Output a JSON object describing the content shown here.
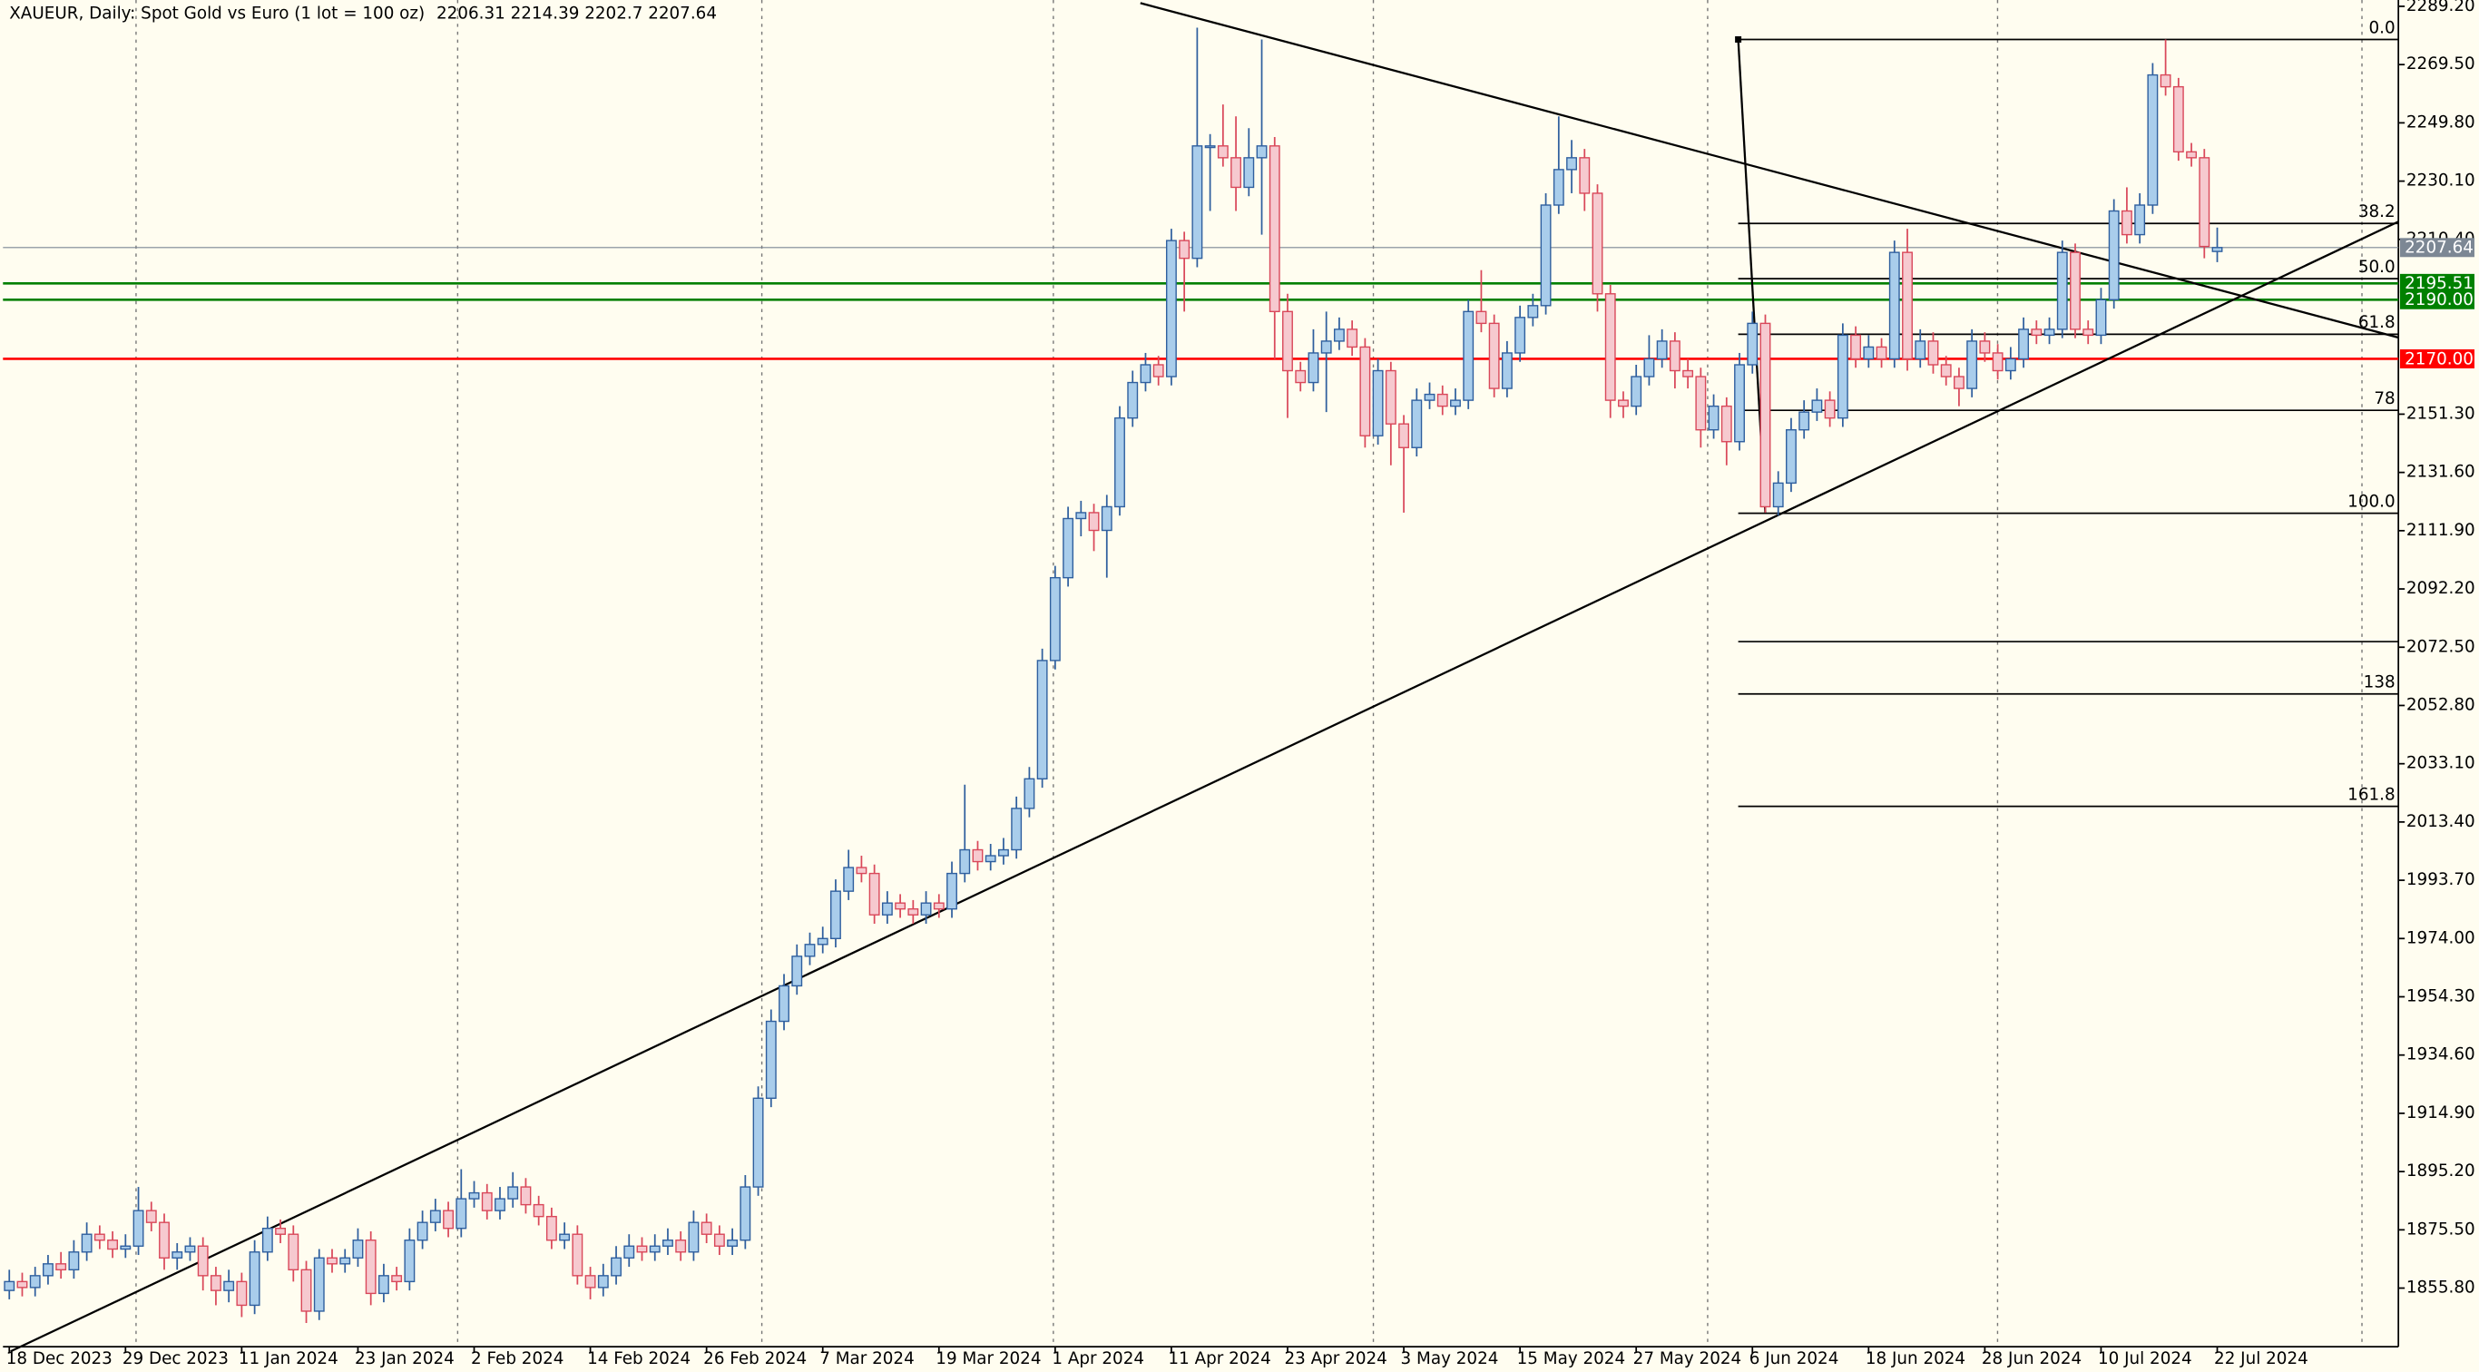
{
  "chart_data": {
    "type": "candlestick",
    "title": "XAUEUR, Daily:  Spot Gold vs Euro (1 lot = 100 oz)",
    "categories": [
      "18 Dec 2023",
      null,
      null,
      null,
      null,
      null,
      null,
      null,
      null,
      "29 Dec 2023",
      null,
      null,
      null,
      null,
      null,
      null,
      null,
      null,
      "11 Jan 2024",
      null,
      null,
      null,
      null,
      null,
      null,
      null,
      null,
      "23 Jan 2024",
      null,
      null,
      null,
      null,
      null,
      null,
      null,
      null,
      "2 Feb 2024",
      null,
      null,
      null,
      null,
      null,
      null,
      null,
      null,
      "14 Feb 2024",
      null,
      null,
      null,
      null,
      null,
      null,
      null,
      null,
      "26 Feb 2024",
      null,
      null,
      null,
      null,
      null,
      null,
      null,
      null,
      "7 Mar 2024",
      null,
      null,
      null,
      null,
      null,
      null,
      null,
      null,
      "19 Mar 2024",
      null,
      null,
      null,
      null,
      null,
      null,
      null,
      null,
      "1 Apr 2024",
      null,
      null,
      null,
      null,
      null,
      null,
      null,
      null,
      "11 Apr 2024",
      null,
      null,
      null,
      null,
      null,
      null,
      null,
      null,
      "23 Apr 2024",
      null,
      null,
      null,
      null,
      null,
      null,
      null,
      null,
      "3 May 2024",
      null,
      null,
      null,
      null,
      null,
      null,
      null,
      null,
      "15 May 2024",
      null,
      null,
      null,
      null,
      null,
      null,
      null,
      null,
      "27 May 2024",
      null,
      null,
      null,
      null,
      null,
      null,
      null,
      null,
      "6 Jun 2024",
      null,
      null,
      null,
      null,
      null,
      null,
      null,
      null,
      "18 Jun 2024",
      null,
      null,
      null,
      null,
      null,
      null,
      null,
      null,
      "28 Jun 2024",
      null,
      null,
      null,
      null,
      null,
      null,
      null,
      null,
      "10 Jul 2024",
      null,
      null,
      null,
      null,
      null,
      null,
      null,
      null,
      "22 Jul 2024"
    ],
    "candles": [
      [
        1855,
        1862,
        1852,
        1858
      ],
      [
        1858,
        1861,
        1853,
        1856
      ],
      [
        1856,
        1863,
        1853,
        1860
      ],
      [
        1860,
        1867,
        1857,
        1864
      ],
      [
        1864,
        1868,
        1859,
        1862
      ],
      [
        1862,
        1872,
        1859,
        1868
      ],
      [
        1868,
        1878,
        1865,
        1874
      ],
      [
        1874,
        1877,
        1869,
        1872
      ],
      [
        1872,
        1875,
        1866,
        1869
      ],
      [
        1869,
        1874,
        1866,
        1870
      ],
      [
        1870,
        1890,
        1867,
        1882
      ],
      [
        1882,
        1885,
        1875,
        1878
      ],
      [
        1878,
        1881,
        1862,
        1866
      ],
      [
        1866,
        1871,
        1862,
        1868
      ],
      [
        1868,
        1873,
        1865,
        1870
      ],
      [
        1870,
        1873,
        1855,
        1860
      ],
      [
        1860,
        1863,
        1850,
        1855
      ],
      [
        1855,
        1862,
        1851,
        1858
      ],
      [
        1858,
        1861,
        1846,
        1850
      ],
      [
        1850,
        1872,
        1847,
        1868
      ],
      [
        1868,
        1880,
        1865,
        1876
      ],
      [
        1876,
        1879,
        1871,
        1874
      ],
      [
        1874,
        1877,
        1858,
        1862
      ],
      [
        1862,
        1865,
        1844,
        1848
      ],
      [
        1848,
        1869,
        1845,
        1866
      ],
      [
        1866,
        1869,
        1861,
        1864
      ],
      [
        1864,
        1869,
        1861,
        1866
      ],
      [
        1866,
        1876,
        1863,
        1872
      ],
      [
        1872,
        1875,
        1850,
        1854
      ],
      [
        1854,
        1864,
        1851,
        1860
      ],
      [
        1860,
        1863,
        1855,
        1858
      ],
      [
        1858,
        1876,
        1855,
        1872
      ],
      [
        1872,
        1882,
        1869,
        1878
      ],
      [
        1878,
        1886,
        1875,
        1882
      ],
      [
        1882,
        1885,
        1873,
        1876
      ],
      [
        1876,
        1896,
        1873,
        1886
      ],
      [
        1886,
        1892,
        1883,
        1888
      ],
      [
        1888,
        1891,
        1879,
        1882
      ],
      [
        1882,
        1890,
        1879,
        1886
      ],
      [
        1886,
        1895,
        1883,
        1890
      ],
      [
        1890,
        1893,
        1881,
        1884
      ],
      [
        1884,
        1887,
        1877,
        1880
      ],
      [
        1880,
        1883,
        1869,
        1872
      ],
      [
        1872,
        1878,
        1869,
        1874
      ],
      [
        1874,
        1877,
        1857,
        1860
      ],
      [
        1860,
        1863,
        1852,
        1856
      ],
      [
        1856,
        1864,
        1853,
        1860
      ],
      [
        1860,
        1870,
        1857,
        1866
      ],
      [
        1866,
        1874,
        1863,
        1870
      ],
      [
        1870,
        1873,
        1865,
        1868
      ],
      [
        1868,
        1874,
        1865,
        1870
      ],
      [
        1870,
        1876,
        1867,
        1872
      ],
      [
        1872,
        1875,
        1865,
        1868
      ],
      [
        1868,
        1882,
        1865,
        1878
      ],
      [
        1878,
        1881,
        1871,
        1874
      ],
      [
        1874,
        1877,
        1867,
        1870
      ],
      [
        1870,
        1876,
        1867,
        1872
      ],
      [
        1872,
        1894,
        1869,
        1890
      ],
      [
        1890,
        1924,
        1887,
        1920
      ],
      [
        1920,
        1950,
        1917,
        1946
      ],
      [
        1946,
        1962,
        1943,
        1958
      ],
      [
        1958,
        1972,
        1955,
        1968
      ],
      [
        1968,
        1976,
        1965,
        1972
      ],
      [
        1972,
        1978,
        1969,
        1974
      ],
      [
        1974,
        1994,
        1971,
        1990
      ],
      [
        1990,
        2004,
        1987,
        1998
      ],
      [
        1998,
        2002,
        1993,
        1996
      ],
      [
        1996,
        1999,
        1979,
        1982
      ],
      [
        1982,
        1990,
        1979,
        1986
      ],
      [
        1986,
        1989,
        1981,
        1984
      ],
      [
        1984,
        1987,
        1979,
        1982
      ],
      [
        1982,
        1990,
        1979,
        1986
      ],
      [
        1986,
        1989,
        1981,
        1984
      ],
      [
        1984,
        2000,
        1981,
        1996
      ],
      [
        1996,
        2026,
        1993,
        2004
      ],
      [
        2004,
        2007,
        1997,
        2000
      ],
      [
        2000,
        2006,
        1997,
        2002
      ],
      [
        2002,
        2008,
        1999,
        2004
      ],
      [
        2004,
        2022,
        2001,
        2018
      ],
      [
        2018,
        2032,
        2015,
        2028
      ],
      [
        2028,
        2072,
        2025,
        2068
      ],
      [
        2068,
        2100,
        2065,
        2096
      ],
      [
        2096,
        2120,
        2093,
        2116
      ],
      [
        2116,
        2122,
        2110,
        2118
      ],
      [
        2118,
        2121,
        2105,
        2112
      ],
      [
        2112,
        2124,
        2096,
        2120
      ],
      [
        2120,
        2154,
        2117,
        2150
      ],
      [
        2150,
        2166,
        2147,
        2162
      ],
      [
        2162,
        2172,
        2159,
        2168
      ],
      [
        2168,
        2171,
        2161,
        2164
      ],
      [
        2164,
        2214,
        2161,
        2210
      ],
      [
        2210,
        2213,
        2186,
        2204
      ],
      [
        2204,
        2282,
        2201,
        2242
      ],
      [
        2242,
        2246,
        2220,
        2242
      ],
      [
        2242,
        2256,
        2235,
        2238
      ],
      [
        2238,
        2252,
        2220,
        2228
      ],
      [
        2228,
        2248,
        2225,
        2238
      ],
      [
        2238,
        2278,
        2212,
        2242
      ],
      [
        2242,
        2245,
        2170,
        2186
      ],
      [
        2186,
        2192,
        2150,
        2166
      ],
      [
        2166,
        2169,
        2159,
        2162
      ],
      [
        2162,
        2180,
        2159,
        2172
      ],
      [
        2172,
        2186,
        2152,
        2176
      ],
      [
        2176,
        2184,
        2173,
        2180
      ],
      [
        2180,
        2183,
        2171,
        2174
      ],
      [
        2174,
        2177,
        2140,
        2144
      ],
      [
        2144,
        2170,
        2141,
        2166
      ],
      [
        2166,
        2169,
        2134,
        2148
      ],
      [
        2148,
        2151,
        2118,
        2140
      ],
      [
        2140,
        2160,
        2137,
        2156
      ],
      [
        2156,
        2162,
        2153,
        2158
      ],
      [
        2158,
        2161,
        2151,
        2154
      ],
      [
        2154,
        2160,
        2151,
        2156
      ],
      [
        2156,
        2190,
        2153,
        2186
      ],
      [
        2186,
        2200,
        2179,
        2182
      ],
      [
        2182,
        2185,
        2157,
        2160
      ],
      [
        2160,
        2176,
        2157,
        2172
      ],
      [
        2172,
        2188,
        2169,
        2184
      ],
      [
        2184,
        2192,
        2181,
        2188
      ],
      [
        2188,
        2226,
        2185,
        2222
      ],
      [
        2222,
        2252,
        2219,
        2234
      ],
      [
        2234,
        2244,
        2226,
        2238
      ],
      [
        2238,
        2241,
        2220,
        2226
      ],
      [
        2226,
        2229,
        2186,
        2192
      ],
      [
        2192,
        2195,
        2150,
        2156
      ],
      [
        2156,
        2159,
        2150,
        2154
      ],
      [
        2154,
        2168,
        2151,
        2164
      ],
      [
        2164,
        2178,
        2161,
        2170
      ],
      [
        2170,
        2180,
        2167,
        2176
      ],
      [
        2176,
        2179,
        2160,
        2166
      ],
      [
        2166,
        2170,
        2160,
        2164
      ],
      [
        2164,
        2167,
        2140,
        2146
      ],
      [
        2146,
        2158,
        2143,
        2154
      ],
      [
        2154,
        2157,
        2134,
        2142
      ],
      [
        2142,
        2172,
        2139,
        2168
      ],
      [
        2168,
        2186,
        2165,
        2182
      ],
      [
        2182,
        2185,
        2118,
        2120
      ],
      [
        2120,
        2132,
        2117,
        2128
      ],
      [
        2128,
        2150,
        2125,
        2146
      ],
      [
        2146,
        2156,
        2143,
        2152
      ],
      [
        2152,
        2160,
        2149,
        2156
      ],
      [
        2156,
        2159,
        2147,
        2150
      ],
      [
        2150,
        2182,
        2147,
        2178
      ],
      [
        2178,
        2181,
        2167,
        2170
      ],
      [
        2170,
        2178,
        2167,
        2174
      ],
      [
        2174,
        2177,
        2167,
        2170
      ],
      [
        2170,
        2210,
        2167,
        2206
      ],
      [
        2206,
        2214,
        2166,
        2170
      ],
      [
        2170,
        2180,
        2167,
        2176
      ],
      [
        2176,
        2179,
        2165,
        2168
      ],
      [
        2168,
        2171,
        2161,
        2164
      ],
      [
        2164,
        2167,
        2154,
        2160
      ],
      [
        2160,
        2180,
        2157,
        2176
      ],
      [
        2176,
        2179,
        2169,
        2172
      ],
      [
        2172,
        2175,
        2163,
        2166
      ],
      [
        2166,
        2174,
        2163,
        2170
      ],
      [
        2170,
        2184,
        2167,
        2180
      ],
      [
        2180,
        2183,
        2175,
        2178
      ],
      [
        2178,
        2184,
        2175,
        2180
      ],
      [
        2180,
        2210,
        2177,
        2206
      ],
      [
        2206,
        2209,
        2177,
        2180
      ],
      [
        2180,
        2183,
        2175,
        2178
      ],
      [
        2178,
        2194,
        2175,
        2190
      ],
      [
        2190,
        2224,
        2187,
        2220
      ],
      [
        2220,
        2228,
        2209,
        2212
      ],
      [
        2212,
        2226,
        2209,
        2222
      ],
      [
        2222,
        2270,
        2219,
        2266
      ],
      [
        2266,
        2278,
        2259,
        2262
      ],
      [
        2262,
        2265,
        2237,
        2240
      ],
      [
        2240,
        2243,
        2235,
        2238
      ],
      [
        2238,
        2241,
        2204,
        2208
      ],
      [
        2206.31,
        2214.39,
        2202.7,
        2207.64
      ]
    ],
    "up_color": "#a9cdeb",
    "up_edge": "#2f5f9e",
    "down_color": "#f6c9cf",
    "down_edge": "#d9485a",
    "xlim": [
      -0.49,
      185.03
    ],
    "ylim": [
      1836.0,
      2291.34
    ],
    "yticks": [
      {
        "value": 2289.2,
        "label": "2289.20"
      },
      {
        "value": 2269.5,
        "label": "2269.50"
      },
      {
        "value": 2249.8,
        "label": "2249.80"
      },
      {
        "value": 2230.1,
        "label": "2230.10"
      },
      {
        "value": 2210.4,
        "label": "2210.40"
      },
      {
        "value": 2151.3,
        "label": "2151.30"
      },
      {
        "value": 2131.6,
        "label": "2131.60"
      },
      {
        "value": 2111.9,
        "label": "2111.90"
      },
      {
        "value": 2092.2,
        "label": "2092.20"
      },
      {
        "value": 2072.5,
        "label": "2072.50"
      },
      {
        "value": 2052.8,
        "label": "2052.80"
      },
      {
        "value": 2033.1,
        "label": "2033.10"
      },
      {
        "value": 2013.4,
        "label": "2013.40"
      },
      {
        "value": 1993.7,
        "label": "1993.70"
      },
      {
        "value": 1974,
        "label": "1974.00"
      },
      {
        "value": 1954.3,
        "label": "1954.30"
      },
      {
        "value": 1934.6,
        "label": "1934.60"
      },
      {
        "value": 1914.9,
        "label": "1914.90"
      },
      {
        "value": 1895.2,
        "label": "1895.20"
      },
      {
        "value": 1875.5,
        "label": "1875.50"
      },
      {
        "value": 1855.8,
        "label": "1855.80"
      }
    ],
    "hlines": [
      {
        "value": 2207.64,
        "color": "#7c8794"
      },
      {
        "value": 2195.51,
        "color": "#008000"
      },
      {
        "value": 2190,
        "label": "2190.00",
        "color": "#008000"
      },
      {
        "value": 2170,
        "label": "2170.00",
        "color": "#ff0000"
      }
    ],
    "fibo": {
      "start": 133.9,
      "levels": [
        {
          "label": "0.0",
          "price": 2278
        },
        {
          "label": "38.2",
          "price": 2215.8
        },
        {
          "label": "50.0",
          "price": 2197.1
        },
        {
          "label": "61.8",
          "price": 2178.3
        },
        {
          "label": "78",
          "price": 2152.6
        },
        {
          "label": "100.0",
          "price": 2117.8
        },
        {
          "label": null,
          "price": 2074.4
        },
        {
          "label": "138",
          "price": 2056.7
        },
        {
          "label": "161.8",
          "price": 2018.7
        }
      ]
    },
    "trendlines": [
      [
        [
          87.6,
          2290.3
        ],
        [
          185.03,
          2177.2
        ]
      ],
      [
        [
          0.1,
          1834.4
        ],
        [
          185.03,
          2216.4
        ]
      ],
      [
        [
          133.9,
          2278
        ],
        [
          136.0,
          2117.8
        ]
      ]
    ]
  }
}
